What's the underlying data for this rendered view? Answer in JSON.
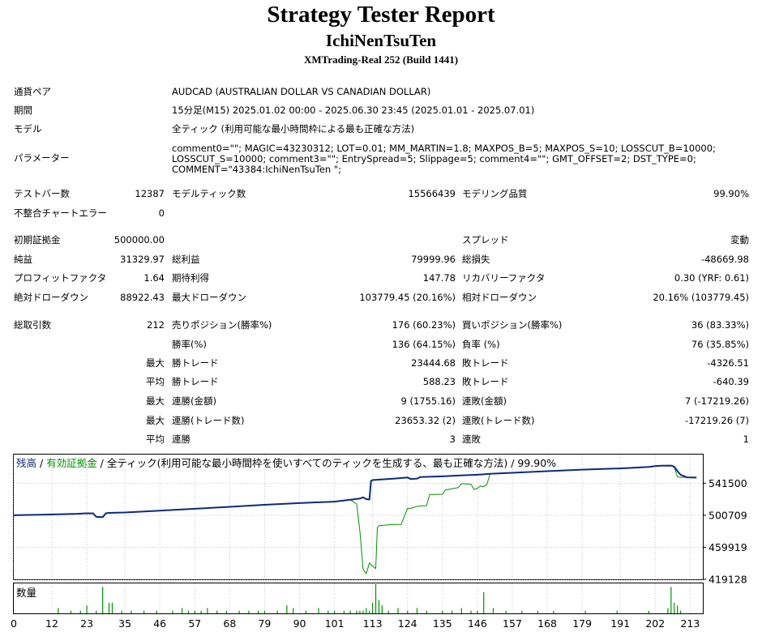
{
  "header": {
    "title": "Strategy Tester Report",
    "subtitle": "IchiNenTsuTen",
    "build": "XMTrading-Real 252 (Build 1441)"
  },
  "info": {
    "symbol_label": "通貨ペア",
    "symbol": "AUDCAD (AUSTRALIAN DOLLAR VS CANADIAN DOLLAR)",
    "period_label": "期間",
    "period": "15分足(M15) 2025.01.02 00:00 - 2025.06.30 23:45 (2025.01.01 - 2025.07.01)",
    "model_label": "モデル",
    "model": "全ティック (利用可能な最小時間枠による最も正確な方法)",
    "params_label": "パラメーター",
    "params": [
      "comment0=\"\"; MAGIC=43230312; LOT=0.01; MM_MARTIN=1.8; MAXPOS_B=5; MAXPOS_S=10; LOSSCUT_B=10000;",
      "LOSSCUT_S=10000; comment3=\"\"; EntrySpread=5; Slippage=5; comment4=\"\"; GMT_OFFSET=2; DST_TYPE=0;",
      "COMMENT=\"43384:IchiNenTsuTen \";"
    ]
  },
  "stats": {
    "bars_label": "テストバー数",
    "bars": "12387",
    "ticks_label": "モデルティック数",
    "ticks": "15566439",
    "quality_label": "モデリング品質",
    "quality": "99.90%",
    "mismatch_label": "不整合チャートエラー",
    "mismatch": "0",
    "deposit_label": "初期証拠金",
    "deposit": "500000.00",
    "spread_label": "スプレッド",
    "spread": "変動",
    "net_label": "純益",
    "net": "31329.97",
    "gross_profit_label": "総利益",
    "gross_profit": "79999.96",
    "gross_loss_label": "総損失",
    "gross_loss": "-48669.98",
    "pf_label": "プロフィットファクタ",
    "pf": "1.64",
    "payoff_label": "期待利得",
    "payoff": "147.78",
    "recovery_label": "リカバリーファクタ",
    "recovery": "0.30 (YRF: 0.61)",
    "abs_dd_label": "絶対ドローダウン",
    "abs_dd": "88922.43",
    "max_dd_label": "最大ドローダウン",
    "max_dd": "103779.45 (20.16%)",
    "rel_dd_label": "相対ドローダウン",
    "rel_dd": "20.16% (103779.45)",
    "trades_label": "総取引数",
    "trades": "212",
    "short_label": "売りポジション(勝率%)",
    "short": "176 (60.23%)",
    "long_label": "買いポジション(勝率%)",
    "long": "36 (83.33%)",
    "winrate_label": "勝率(%)",
    "winrate": "136 (64.15%)",
    "lossrate_label": "負率 (%)",
    "lossrate": "76 (35.85%)",
    "largest": "最大",
    "average": "平均",
    "max_win_label": "勝トレード",
    "max_win": "23444.68",
    "max_loss_label": "敗トレード",
    "max_loss": "-4326.51",
    "avg_win_label": "勝トレード",
    "avg_win": "588.23",
    "avg_loss_label": "敗トレード",
    "avg_loss": "-640.39",
    "cons_wins_money_label": "連勝(金額)",
    "cons_wins_money": "9 (1755.16)",
    "cons_losses_money_label": "連敗(金額)",
    "cons_losses_money": "7 (-17219.26)",
    "cons_wins_trades_label": "連勝(トレード数)",
    "cons_wins_trades": "23653.32 (2)",
    "cons_losses_trades_label": "連敗(トレード数)",
    "cons_losses_trades": "-17219.26 (7)",
    "avg_cons_wins_label": "連勝",
    "avg_cons_wins": "3",
    "avg_cons_losses_label": "連敗",
    "avg_cons_losses": "1"
  },
  "colors": {
    "balance": "#0d2a7a",
    "equity": "#009000",
    "volume": "#009000",
    "grid": "#c8c8c8"
  },
  "chart_data": [
    {
      "type": "line",
      "legend": {
        "balance": "残高",
        "equity": "有効証拠金",
        "description": "全ティック(利用可能な最小時間枠を使いすべてのティックを生成する、最も正確な方法) / 99.90%"
      },
      "ylim": [
        419128,
        578000
      ],
      "y_ticks": [
        541500,
        500709,
        459919,
        419128
      ],
      "x_ticks": [
        0,
        12,
        23,
        35,
        46,
        57,
        68,
        79,
        90,
        101,
        113,
        124,
        135,
        146,
        157,
        168,
        179,
        191,
        202,
        213
      ],
      "xlim": [
        0,
        217
      ],
      "series": [
        {
          "name": "残高",
          "x": [
            0,
            10,
            20,
            23,
            25,
            26,
            28,
            29,
            30,
            35,
            46,
            57,
            68,
            79,
            90,
            101,
            106,
            109,
            110,
            111,
            112,
            112.5,
            113,
            120,
            124,
            125,
            127,
            128,
            135,
            140,
            146,
            148,
            149,
            150,
            157,
            168,
            179,
            191,
            200,
            202,
            204,
            207,
            208,
            209,
            210,
            212,
            215
          ],
          "values": [
            500709,
            501600,
            502600,
            503200,
            503100,
            498700,
            498400,
            503200,
            503700,
            504200,
            506500,
            509000,
            511500,
            514000,
            516200,
            518100,
            520400,
            522000,
            523500,
            521300,
            520800,
            544500,
            545500,
            547500,
            548800,
            546800,
            547400,
            549300,
            550200,
            551300,
            552300,
            552800,
            553200,
            553600,
            554800,
            556900,
            558800,
            560400,
            562200,
            563200,
            563800,
            564000,
            562500,
            557000,
            552200,
            549000,
            548700
          ]
        },
        {
          "name": "有効証拠金",
          "x": [
            0,
            10,
            20,
            23,
            25,
            26,
            28,
            29,
            30,
            35,
            46,
            57,
            68,
            79,
            90,
            101,
            106,
            108,
            109,
            110,
            111,
            112,
            113,
            114,
            114.5,
            115,
            118,
            120,
            122,
            124,
            125,
            127,
            128,
            130,
            131,
            135,
            136,
            138,
            140,
            141,
            143,
            144,
            145,
            146,
            147,
            148,
            149,
            150,
            157,
            168,
            179,
            191,
            200,
            202,
            204,
            207,
            208,
            208.5,
            209,
            210,
            212,
            215
          ],
          "values": [
            500709,
            501600,
            502600,
            503200,
            503100,
            498700,
            498400,
            503200,
            503700,
            504200,
            506500,
            509000,
            511500,
            514000,
            516200,
            518100,
            520400,
            515000,
            480000,
            432000,
            426500,
            440000,
            436000,
            433000,
            485000,
            487500,
            488500,
            489000,
            489000,
            509500,
            509500,
            512000,
            512500,
            513000,
            527000,
            527500,
            533000,
            534500,
            536000,
            541000,
            540500,
            540000,
            533500,
            535000,
            538000,
            537000,
            540000,
            553600,
            554800,
            556900,
            558800,
            560400,
            562200,
            563200,
            563800,
            564000,
            562500,
            556000,
            549500,
            549000,
            549000,
            548700
          ]
        }
      ]
    },
    {
      "type": "bar",
      "title": "数量",
      "x": [
        14,
        18,
        21,
        23,
        26,
        28,
        30,
        31,
        34,
        37,
        41,
        45,
        50,
        53,
        55,
        57,
        59,
        61,
        64,
        67,
        71,
        74,
        77,
        79,
        83,
        86,
        88,
        92,
        96,
        99,
        101,
        104,
        106,
        108,
        109,
        110,
        111,
        112,
        113,
        114,
        115,
        116,
        118,
        121,
        124,
        127,
        130,
        135,
        138,
        141,
        144,
        146,
        148,
        151,
        155,
        160,
        165,
        170,
        180,
        190,
        200,
        206,
        207,
        208,
        209,
        210
      ],
      "values": [
        2,
        1,
        1,
        3,
        1,
        10,
        4,
        4,
        1,
        1,
        1,
        1,
        1,
        2,
        1,
        1,
        1,
        2,
        1,
        1,
        1,
        1,
        1,
        1,
        1,
        3,
        2,
        1,
        2,
        1,
        1,
        1,
        1,
        1,
        1,
        1,
        2,
        1,
        4,
        11,
        5,
        3,
        1,
        2,
        1,
        2,
        1,
        1,
        1,
        2,
        1,
        1,
        8,
        2,
        1,
        1,
        1,
        1,
        1,
        1,
        1,
        2,
        10,
        4,
        3,
        1
      ],
      "ylim": [
        0,
        11
      ]
    }
  ]
}
